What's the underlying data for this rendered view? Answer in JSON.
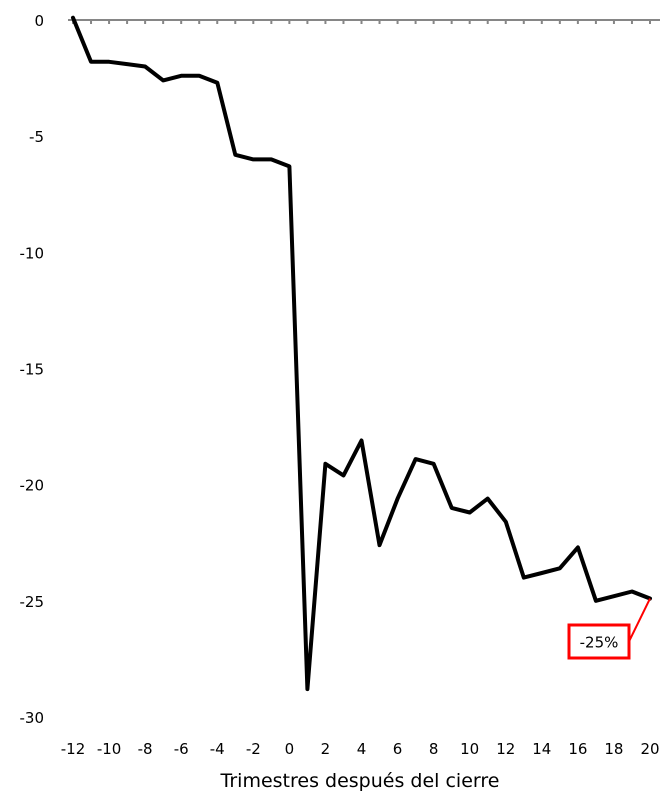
{
  "chart_data": {
    "type": "line",
    "title": "",
    "xlabel": "Trimestres después del cierre",
    "ylabel": "",
    "xlim": [
      -12,
      20
    ],
    "ylim": [
      -30,
      0
    ],
    "x_ticks": [
      -12,
      -10,
      -8,
      -6,
      -4,
      -2,
      0,
      2,
      4,
      6,
      8,
      10,
      12,
      14,
      16,
      18,
      20
    ],
    "y_ticks": [
      0,
      -5,
      -10,
      -15,
      -20,
      -25,
      -30
    ],
    "grid": false,
    "x": [
      -12,
      -11,
      -10,
      -9,
      -8,
      -7,
      -6,
      -5,
      -4,
      -3,
      -2,
      -1,
      0,
      1,
      2,
      3,
      4,
      5,
      6,
      7,
      8,
      9,
      10,
      11,
      12,
      13,
      14,
      15,
      16,
      17,
      18,
      19,
      20
    ],
    "series": [
      {
        "values": [
          0.1,
          -1.8,
          -1.8,
          -1.9,
          -2.0,
          -2.6,
          -2.4,
          -2.4,
          -2.7,
          -5.8,
          -6.0,
          -6.0,
          -6.3,
          -28.8,
          -19.1,
          -19.6,
          -18.1,
          -22.6,
          -20.6,
          -18.9,
          -19.1,
          -21.0,
          -21.2,
          -20.6,
          -21.6,
          -24.0,
          -23.8,
          -23.6,
          -22.7,
          -25.0,
          -24.8,
          -24.6,
          -24.9
        ],
        "color": "#000000"
      }
    ],
    "annotation": {
      "text": "-25%",
      "x": 20,
      "y": -24.9,
      "color": "#ff0000"
    }
  }
}
